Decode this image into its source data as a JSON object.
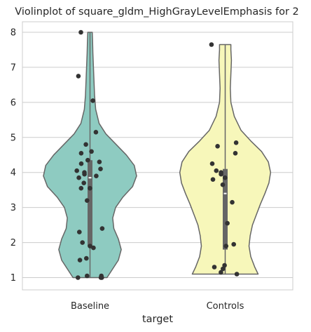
{
  "chart_data": {
    "type": "violin",
    "title": "Violinplot of square_gldm_HighGrayLevelEmphasis for 2",
    "xlabel": "target",
    "ylabel": "",
    "ylim": [
      0.65,
      8.3
    ],
    "yticks": [
      1,
      2,
      3,
      4,
      5,
      6,
      7,
      8
    ],
    "grid": true,
    "categories": [
      "Baseline",
      "Controls"
    ],
    "groups": [
      {
        "name": "Baseline",
        "color": "#8ecbc1",
        "min": 1.0,
        "max": 8.0,
        "q1": 1.9,
        "median": 3.85,
        "q3": 4.35,
        "density": [
          [
            1.0,
            0.3
          ],
          [
            1.2,
            0.38
          ],
          [
            1.5,
            0.5
          ],
          [
            1.8,
            0.55
          ],
          [
            2.1,
            0.5
          ],
          [
            2.4,
            0.42
          ],
          [
            2.7,
            0.4
          ],
          [
            3.0,
            0.45
          ],
          [
            3.3,
            0.58
          ],
          [
            3.6,
            0.75
          ],
          [
            3.9,
            0.82
          ],
          [
            4.2,
            0.78
          ],
          [
            4.5,
            0.64
          ],
          [
            4.8,
            0.46
          ],
          [
            5.1,
            0.28
          ],
          [
            5.4,
            0.16
          ],
          [
            5.8,
            0.1
          ],
          [
            6.2,
            0.08
          ],
          [
            6.6,
            0.07
          ],
          [
            7.0,
            0.06
          ],
          [
            7.4,
            0.05
          ],
          [
            7.8,
            0.045
          ],
          [
            8.0,
            0.04
          ]
        ],
        "points": [
          1.0,
          1.0,
          1.0,
          1.05,
          1.05,
          1.5,
          1.55,
          1.9,
          1.85,
          2.0,
          2.3,
          2.4,
          3.2,
          3.55,
          3.55,
          3.7,
          3.85,
          3.9,
          3.95,
          4.0,
          4.05,
          4.1,
          4.25,
          4.3,
          4.35,
          4.55,
          4.6,
          4.8,
          5.15,
          6.05,
          6.75,
          8.0
        ]
      },
      {
        "name": "Controls",
        "color": "#f7f7ba",
        "min": 1.1,
        "max": 7.65,
        "q1": 1.8,
        "median": 3.4,
        "q3": 4.1,
        "density": [
          [
            1.1,
            0.58
          ],
          [
            1.3,
            0.52
          ],
          [
            1.6,
            0.45
          ],
          [
            1.9,
            0.42
          ],
          [
            2.2,
            0.44
          ],
          [
            2.5,
            0.48
          ],
          [
            2.8,
            0.55
          ],
          [
            3.1,
            0.62
          ],
          [
            3.4,
            0.7
          ],
          [
            3.7,
            0.77
          ],
          [
            4.0,
            0.8
          ],
          [
            4.3,
            0.76
          ],
          [
            4.6,
            0.64
          ],
          [
            4.9,
            0.45
          ],
          [
            5.2,
            0.28
          ],
          [
            5.6,
            0.16
          ],
          [
            6.0,
            0.1
          ],
          [
            6.4,
            0.09
          ],
          [
            6.8,
            0.1
          ],
          [
            7.2,
            0.11
          ],
          [
            7.5,
            0.1
          ],
          [
            7.65,
            0.1
          ]
        ],
        "points": [
          1.1,
          1.15,
          1.25,
          1.3,
          1.35,
          1.9,
          1.95,
          2.55,
          3.15,
          3.65,
          3.8,
          3.85,
          3.95,
          4.0,
          4.05,
          4.25,
          4.55,
          4.75,
          4.85,
          7.65
        ]
      }
    ]
  }
}
